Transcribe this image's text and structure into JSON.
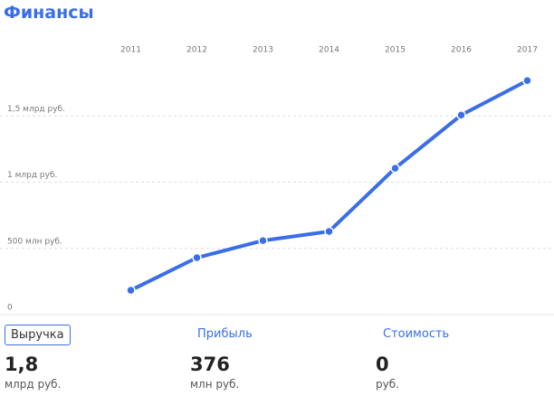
{
  "header": {
    "title": "Финансы"
  },
  "chart_data": {
    "type": "line",
    "categories": [
      "2011",
      "2012",
      "2013",
      "2014",
      "2015",
      "2016",
      "2017"
    ],
    "series": [
      {
        "name": "Выручка",
        "color": "#3a6ee8",
        "values": [
          184,
          430,
          559,
          628,
          1105,
          1507,
          1767
        ]
      }
    ],
    "ylim": [
      0,
      2000
    ],
    "yticks": [
      0,
      {
        "value": 500,
        "label": "500 млн руб."
      },
      {
        "value": 1000,
        "label": "1 млрд руб."
      },
      {
        "value": 1500,
        "label": "1,5 млрд руб."
      }
    ],
    "grid": true
  },
  "tabs": [
    {
      "label": "Выручка",
      "value": "1,8",
      "unit": "млрд руб."
    },
    {
      "label": "Прибыль",
      "value": "376",
      "unit": "млн руб."
    },
    {
      "label": "Стоимость",
      "value": "0",
      "unit": "руб."
    }
  ]
}
